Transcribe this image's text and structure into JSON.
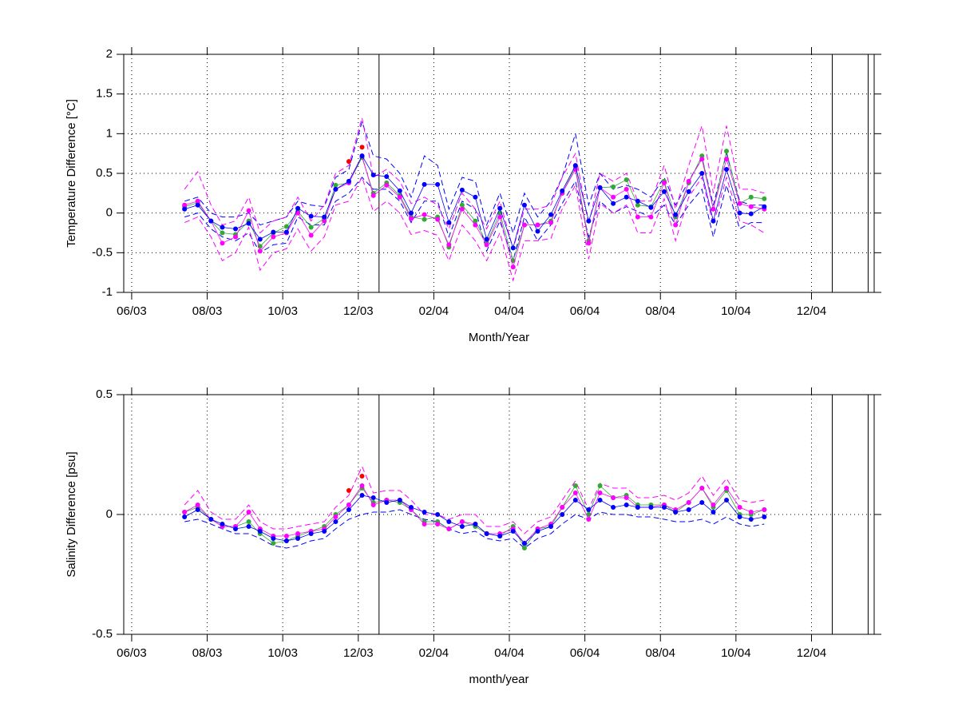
{
  "chart_data": [
    {
      "type": "line",
      "ylabel": "Temperature Difference [°C]",
      "xlabel": "Month/Year",
      "xlim": [
        5.79,
        25.66
      ],
      "ylim": [
        -1,
        2
      ],
      "grid": true,
      "xticks": [
        {
          "value": 6,
          "label": "06/03"
        },
        {
          "value": 8,
          "label": "08/03"
        },
        {
          "value": 10,
          "label": "10/03"
        },
        {
          "value": 12,
          "label": "12/03"
        },
        {
          "value": 14,
          "label": "02/04"
        },
        {
          "value": 16,
          "label": "04/04"
        },
        {
          "value": 18,
          "label": "06/04"
        },
        {
          "value": 20,
          "label": "08/04"
        },
        {
          "value": 22,
          "label": "10/04"
        },
        {
          "value": 24,
          "label": "12/04"
        }
      ],
      "yticks": [
        -1,
        -0.5,
        0,
        0.5,
        1,
        1.5,
        2
      ],
      "vlines": [
        12.55,
        24.55,
        25.5
      ],
      "x": [
        7.4,
        7.75,
        8.1,
        8.4,
        8.75,
        9.1,
        9.4,
        9.75,
        10.1,
        10.4,
        10.75,
        11.1,
        11.4,
        11.75,
        12.1,
        12.4,
        12.75,
        13.1,
        13.4,
        13.75,
        14.1,
        14.4,
        14.75,
        15.1,
        15.4,
        15.75,
        16.1,
        16.4,
        16.75,
        17.1,
        17.4,
        17.75,
        18.1,
        18.4,
        18.75,
        19.1,
        19.4,
        19.75,
        20.1,
        20.4,
        20.75,
        21.1,
        21.4,
        21.75,
        22.1,
        22.4,
        22.75
      ],
      "series": [
        {
          "color": "#0000ff",
          "dashed": true,
          "values": [
            0.15,
            0.2,
            0,
            -0.05,
            -0.05,
            0,
            -0.15,
            -0.1,
            -0.05,
            0.15,
            0.1,
            0.08,
            0.45,
            0.55,
            1.15,
            0.72,
            0.68,
            0.5,
            0.2,
            0.72,
            0.6,
            0.05,
            0.45,
            0.4,
            -0.15,
            0.25,
            -0.25,
            0.25,
            -0.05,
            0.15,
            0.45,
            1.0,
            0.1,
            0.5,
            0.3,
            0.35,
            0.3,
            0.2,
            0.45,
            0.1,
            0.4,
            0.7,
            0.1,
            0.75,
            0.15,
            0.1,
            0.1
          ]
        },
        {
          "color": "#0000ff",
          "dashed": true,
          "values": [
            -0.05,
            0,
            -0.2,
            -0.3,
            -0.35,
            -0.25,
            -0.5,
            -0.4,
            -0.38,
            -0.05,
            -0.15,
            -0.15,
            0.15,
            0.25,
            0.45,
            0.3,
            0.3,
            0.15,
            -0.12,
            0.15,
            0.15,
            -0.3,
            0.15,
            0.05,
            -0.48,
            -0.1,
            -0.6,
            -0.05,
            -0.35,
            -0.15,
            0.12,
            0.4,
            -0.3,
            0.15,
            0,
            0.08,
            0.02,
            -0.05,
            0.1,
            -0.15,
            0.1,
            0.3,
            -0.3,
            0.35,
            -0.2,
            -0.12,
            -0.12
          ]
        },
        {
          "color": "#ff00ff",
          "dashed": true,
          "values": [
            0.3,
            0.52,
            0.1,
            -0.15,
            -0.1,
            0.2,
            -0.25,
            -0.1,
            -0.05,
            0.2,
            -0.1,
            0.1,
            0.5,
            0.6,
            1.2,
            0.45,
            0.55,
            0.4,
            0.12,
            0.2,
            0.1,
            -0.2,
            0.25,
            0.05,
            -0.2,
            0.15,
            -0.45,
            0.05,
            0.05,
            0.1,
            0.45,
            0.75,
            -0.15,
            0.5,
            0.4,
            0.5,
            0.15,
            0.15,
            0.6,
            0.05,
            0.6,
            1.1,
            0.25,
            1.1,
            0.3,
            0.3,
            0.25
          ]
        },
        {
          "color": "#ff00ff",
          "dashed": true,
          "values": [
            -0.12,
            -0.05,
            -0.3,
            -0.6,
            -0.5,
            -0.18,
            -0.72,
            -0.5,
            -0.45,
            -0.2,
            -0.48,
            -0.3,
            0.1,
            0.15,
            0.45,
            0.02,
            0.15,
            0,
            -0.27,
            -0.22,
            -0.28,
            -0.6,
            -0.15,
            -0.35,
            -0.6,
            -0.25,
            -0.85,
            -0.35,
            -0.35,
            -0.32,
            0.05,
            0.35,
            -0.58,
            0.12,
            0,
            0.1,
            -0.25,
            -0.25,
            0.18,
            -0.35,
            0.2,
            0.45,
            -0.15,
            0.45,
            -0.1,
            -0.15,
            -0.25
          ]
        },
        {
          "color": "#33aa33",
          "marker": true,
          "values": [
            0.08,
            0.13,
            -0.1,
            -0.25,
            -0.27,
            -0.1,
            -0.42,
            -0.25,
            -0.17,
            0.02,
            -0.18,
            -0.07,
            0.35,
            0.38,
            0.7,
            0.25,
            0.38,
            0.22,
            -0.05,
            -0.08,
            -0.05,
            -0.43,
            0.1,
            -0.1,
            -0.38,
            0,
            -0.6,
            -0.15,
            -0.15,
            -0.1,
            0.25,
            0.58,
            -0.35,
            0.32,
            0.33,
            0.42,
            0.1,
            0.08,
            0.4,
            -0.05,
            0.38,
            0.72,
            0.05,
            0.78,
            0.12,
            0.2,
            0.18
          ]
        },
        {
          "color": "#ff00ff",
          "marker": true,
          "values": [
            0.1,
            0.15,
            -0.1,
            -0.38,
            -0.3,
            0.03,
            -0.48,
            -0.3,
            -0.25,
            0,
            -0.28,
            -0.1,
            0.3,
            0.38,
            0.72,
            0.22,
            0.35,
            0.2,
            -0.07,
            -0.02,
            -0.08,
            -0.4,
            0.05,
            -0.15,
            -0.4,
            -0.05,
            -0.68,
            -0.15,
            -0.15,
            -0.12,
            0.25,
            0.55,
            -0.38,
            0.32,
            0.2,
            0.3,
            -0.05,
            -0.05,
            0.38,
            -0.15,
            0.4,
            0.68,
            0.05,
            0.68,
            0.12,
            0.08,
            0.05
          ]
        },
        {
          "color": "#0000ff",
          "marker": true,
          "values": [
            0.05,
            0.1,
            -0.1,
            -0.18,
            -0.2,
            -0.13,
            -0.33,
            -0.24,
            -0.24,
            0.06,
            -0.04,
            -0.05,
            0.3,
            0.4,
            0.72,
            0.48,
            0.46,
            0.28,
            0,
            0.36,
            0.36,
            -0.12,
            0.29,
            0.2,
            -0.33,
            0.06,
            -0.44,
            0.1,
            -0.23,
            -0.02,
            0.28,
            0.6,
            -0.1,
            0.32,
            0.12,
            0.2,
            0.15,
            0.07,
            0.27,
            -0.02,
            0.27,
            0.5,
            -0.1,
            0.55,
            0,
            -0.01,
            0.08
          ]
        },
        {
          "color": "#ff0000",
          "marker": true,
          "noline": true,
          "x": [
            11.75,
            12.1
          ],
          "values": [
            0.65,
            0.83
          ]
        }
      ]
    },
    {
      "type": "line",
      "ylabel": "Salinity Difference [psu]",
      "xlabel": "month/year",
      "xlim": [
        5.79,
        25.66
      ],
      "ylim": [
        -0.5,
        0.5
      ],
      "grid": true,
      "xticks": [
        {
          "value": 6,
          "label": "06/03"
        },
        {
          "value": 8,
          "label": "08/03"
        },
        {
          "value": 10,
          "label": "10/03"
        },
        {
          "value": 12,
          "label": "12/03"
        },
        {
          "value": 14,
          "label": "02/04"
        },
        {
          "value": 16,
          "label": "04/04"
        },
        {
          "value": 18,
          "label": "06/04"
        },
        {
          "value": 20,
          "label": "08/04"
        },
        {
          "value": 22,
          "label": "10/04"
        },
        {
          "value": 24,
          "label": "12/04"
        }
      ],
      "yticks": [
        -0.5,
        0,
        0.5
      ],
      "vlines": [
        12.55,
        24.55,
        25.5
      ],
      "x": [
        7.4,
        7.75,
        8.1,
        8.4,
        8.75,
        9.1,
        9.4,
        9.75,
        10.1,
        10.4,
        10.75,
        11.1,
        11.4,
        11.75,
        12.1,
        12.4,
        12.75,
        13.1,
        13.4,
        13.75,
        14.1,
        14.4,
        14.75,
        15.1,
        15.4,
        15.75,
        16.1,
        16.4,
        16.75,
        17.1,
        17.4,
        17.75,
        18.1,
        18.4,
        18.75,
        19.1,
        19.4,
        19.75,
        20.1,
        20.4,
        20.75,
        21.1,
        21.4,
        21.75,
        22.1,
        22.4,
        22.75
      ],
      "series": [
        {
          "color": "#ff00ff",
          "dashed": true,
          "values": [
            0.04,
            0.1,
            0.01,
            -0.02,
            -0.02,
            0.04,
            -0.03,
            -0.06,
            -0.06,
            -0.05,
            -0.04,
            -0.03,
            0.03,
            0.08,
            0.2,
            0.09,
            0.1,
            0.1,
            0.06,
            0,
            0,
            -0.02,
            0,
            0,
            -0.05,
            -0.05,
            -0.03,
            -0.08,
            -0.03,
            -0.01,
            0.06,
            0.14,
            0.02,
            0.13,
            0.11,
            0.11,
            0.07,
            0.07,
            0.08,
            0.06,
            0.09,
            0.16,
            0.08,
            0.15,
            0.06,
            0.05,
            0.06
          ]
        },
        {
          "color": "#0000ff",
          "dashed": true,
          "values": [
            -0.03,
            -0.02,
            -0.04,
            -0.06,
            -0.08,
            -0.08,
            -0.1,
            -0.13,
            -0.14,
            -0.13,
            -0.11,
            -0.1,
            -0.06,
            -0.02,
            0,
            0.01,
            0.01,
            0.02,
            0,
            -0.02,
            -0.03,
            -0.06,
            -0.08,
            -0.07,
            -0.1,
            -0.11,
            -0.1,
            -0.14,
            -0.1,
            -0.08,
            -0.04,
            0,
            -0.02,
            0.01,
            0,
            0,
            -0.01,
            -0.01,
            -0.02,
            -0.03,
            -0.03,
            -0.02,
            -0.04,
            -0.01,
            -0.04,
            -0.05,
            -0.04
          ]
        },
        {
          "color": "#33aa33",
          "marker": true,
          "values": [
            0.01,
            0.03,
            -0.02,
            -0.05,
            -0.05,
            -0.03,
            -0.08,
            -0.12,
            -0.11,
            -0.09,
            -0.07,
            -0.05,
            0,
            0.04,
            0.11,
            0.05,
            0.06,
            0.05,
            0.02,
            -0.03,
            -0.03,
            -0.06,
            -0.03,
            -0.05,
            -0.08,
            -0.09,
            -0.05,
            -0.14,
            -0.06,
            -0.05,
            0.03,
            0.12,
            0,
            0.12,
            0.07,
            0.08,
            0.04,
            0.04,
            0.04,
            0.01,
            0.05,
            0.11,
            0.03,
            0.1,
            0,
            0,
            0.02
          ]
        },
        {
          "color": "#ff00ff",
          "marker": true,
          "values": [
            0.01,
            0.04,
            -0.02,
            -0.05,
            -0.05,
            0.01,
            -0.06,
            -0.09,
            -0.09,
            -0.08,
            -0.07,
            -0.06,
            -0.01,
            0.04,
            0.12,
            0.04,
            0.06,
            0.06,
            0.02,
            -0.04,
            -0.04,
            -0.06,
            -0.03,
            -0.04,
            -0.08,
            -0.08,
            -0.06,
            -0.12,
            -0.06,
            -0.04,
            0.03,
            0.09,
            -0.02,
            0.09,
            0.07,
            0.07,
            0.03,
            0.03,
            0.04,
            0.02,
            0.05,
            0.11,
            0.04,
            0.11,
            0.03,
            0.01,
            0.02
          ]
        },
        {
          "color": "#0000ff",
          "marker": true,
          "values": [
            -0.01,
            0.02,
            -0.02,
            -0.04,
            -0.06,
            -0.05,
            -0.07,
            -0.1,
            -0.11,
            -0.1,
            -0.08,
            -0.07,
            -0.03,
            0.02,
            0.08,
            0.07,
            0.05,
            0.06,
            0.03,
            0.01,
            0,
            -0.03,
            -0.05,
            -0.04,
            -0.08,
            -0.09,
            -0.07,
            -0.12,
            -0.07,
            -0.05,
            0,
            0.06,
            0.02,
            0.06,
            0.03,
            0.04,
            0.03,
            0.03,
            0.03,
            0.01,
            0.02,
            0.05,
            0.01,
            0.06,
            -0.01,
            -0.02,
            -0.01
          ]
        },
        {
          "color": "#ff0000",
          "marker": true,
          "noline": true,
          "x": [
            11.75,
            12.1
          ],
          "values": [
            0.1,
            0.16
          ]
        }
      ]
    }
  ]
}
